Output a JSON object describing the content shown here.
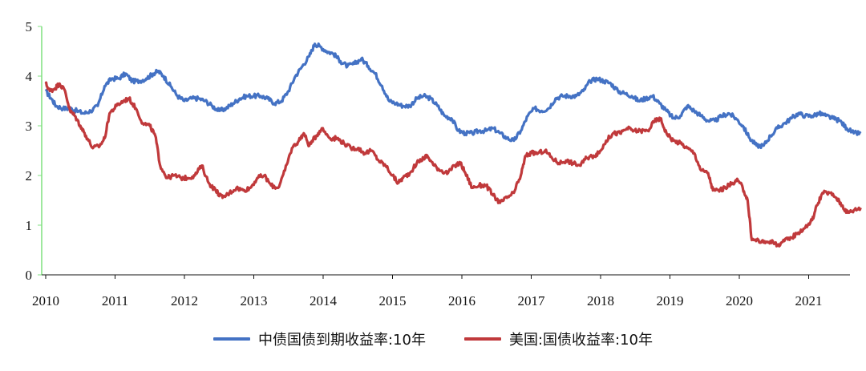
{
  "chart_data": {
    "type": "line",
    "x_ticks": [
      "2010",
      "2011",
      "2012",
      "2013",
      "2014",
      "2015",
      "2016",
      "2017",
      "2018",
      "2019",
      "2020",
      "2021"
    ],
    "y_ticks": [
      "0",
      "1",
      "2",
      "3",
      "4",
      "5"
    ],
    "ylim": [
      0,
      5
    ],
    "xlim": [
      2010.0,
      2021.75
    ],
    "grid": false,
    "legend_position": "bottom",
    "series": [
      {
        "name": "中债国债到期收益率:10年",
        "color": "#4472c4",
        "points": [
          [
            2010.0,
            3.7
          ],
          [
            2010.08,
            3.55
          ],
          [
            2010.15,
            3.4
          ],
          [
            2010.25,
            3.35
          ],
          [
            2010.35,
            3.35
          ],
          [
            2010.45,
            3.3
          ],
          [
            2010.55,
            3.25
          ],
          [
            2010.65,
            3.3
          ],
          [
            2010.75,
            3.4
          ],
          [
            2010.85,
            3.8
          ],
          [
            2010.95,
            3.95
          ],
          [
            2011.05,
            3.95
          ],
          [
            2011.15,
            4.05
          ],
          [
            2011.25,
            3.9
          ],
          [
            2011.35,
            3.9
          ],
          [
            2011.45,
            3.95
          ],
          [
            2011.55,
            4.05
          ],
          [
            2011.62,
            4.1
          ],
          [
            2011.7,
            4.0
          ],
          [
            2011.8,
            3.8
          ],
          [
            2011.9,
            3.6
          ],
          [
            2012.0,
            3.5
          ],
          [
            2012.1,
            3.55
          ],
          [
            2012.2,
            3.55
          ],
          [
            2012.3,
            3.5
          ],
          [
            2012.4,
            3.4
          ],
          [
            2012.5,
            3.3
          ],
          [
            2012.6,
            3.35
          ],
          [
            2012.7,
            3.45
          ],
          [
            2012.8,
            3.55
          ],
          [
            2012.9,
            3.6
          ],
          [
            2013.0,
            3.6
          ],
          [
            2013.1,
            3.6
          ],
          [
            2013.2,
            3.55
          ],
          [
            2013.3,
            3.45
          ],
          [
            2013.4,
            3.5
          ],
          [
            2013.5,
            3.7
          ],
          [
            2013.6,
            4.0
          ],
          [
            2013.7,
            4.2
          ],
          [
            2013.8,
            4.4
          ],
          [
            2013.88,
            4.65
          ],
          [
            2013.95,
            4.6
          ],
          [
            2014.05,
            4.5
          ],
          [
            2014.15,
            4.45
          ],
          [
            2014.25,
            4.3
          ],
          [
            2014.35,
            4.2
          ],
          [
            2014.45,
            4.25
          ],
          [
            2014.55,
            4.35
          ],
          [
            2014.65,
            4.2
          ],
          [
            2014.75,
            4.05
          ],
          [
            2014.85,
            3.8
          ],
          [
            2014.95,
            3.5
          ],
          [
            2015.05,
            3.45
          ],
          [
            2015.15,
            3.4
          ],
          [
            2015.25,
            3.4
          ],
          [
            2015.35,
            3.55
          ],
          [
            2015.45,
            3.6
          ],
          [
            2015.55,
            3.55
          ],
          [
            2015.65,
            3.4
          ],
          [
            2015.75,
            3.2
          ],
          [
            2015.85,
            3.15
          ],
          [
            2015.95,
            2.9
          ],
          [
            2016.05,
            2.85
          ],
          [
            2016.15,
            2.85
          ],
          [
            2016.25,
            2.9
          ],
          [
            2016.35,
            2.9
          ],
          [
            2016.45,
            2.95
          ],
          [
            2016.55,
            2.85
          ],
          [
            2016.65,
            2.75
          ],
          [
            2016.75,
            2.7
          ],
          [
            2016.85,
            2.9
          ],
          [
            2016.95,
            3.2
          ],
          [
            2017.05,
            3.35
          ],
          [
            2017.15,
            3.3
          ],
          [
            2017.25,
            3.35
          ],
          [
            2017.35,
            3.55
          ],
          [
            2017.45,
            3.6
          ],
          [
            2017.55,
            3.6
          ],
          [
            2017.65,
            3.6
          ],
          [
            2017.75,
            3.7
          ],
          [
            2017.85,
            3.9
          ],
          [
            2017.95,
            3.95
          ],
          [
            2018.05,
            3.9
          ],
          [
            2018.15,
            3.85
          ],
          [
            2018.25,
            3.7
          ],
          [
            2018.35,
            3.65
          ],
          [
            2018.45,
            3.6
          ],
          [
            2018.55,
            3.5
          ],
          [
            2018.65,
            3.55
          ],
          [
            2018.75,
            3.6
          ],
          [
            2018.85,
            3.45
          ],
          [
            2018.95,
            3.3
          ],
          [
            2019.05,
            3.15
          ],
          [
            2019.15,
            3.2
          ],
          [
            2019.25,
            3.4
          ],
          [
            2019.35,
            3.3
          ],
          [
            2019.45,
            3.2
          ],
          [
            2019.55,
            3.1
          ],
          [
            2019.65,
            3.1
          ],
          [
            2019.75,
            3.2
          ],
          [
            2019.85,
            3.25
          ],
          [
            2019.95,
            3.15
          ],
          [
            2020.05,
            3.0
          ],
          [
            2020.15,
            2.75
          ],
          [
            2020.25,
            2.6
          ],
          [
            2020.35,
            2.6
          ],
          [
            2020.45,
            2.8
          ],
          [
            2020.55,
            2.95
          ],
          [
            2020.65,
            3.05
          ],
          [
            2020.75,
            3.15
          ],
          [
            2020.85,
            3.25
          ],
          [
            2020.95,
            3.2
          ],
          [
            2021.05,
            3.2
          ],
          [
            2021.15,
            3.25
          ],
          [
            2021.25,
            3.2
          ],
          [
            2021.35,
            3.15
          ],
          [
            2021.45,
            3.1
          ],
          [
            2021.55,
            2.95
          ],
          [
            2021.65,
            2.85
          ],
          [
            2021.75,
            2.85
          ]
        ]
      },
      {
        "name": "美国:国债收益率:10年",
        "color": "#c0393b",
        "points": [
          [
            2010.0,
            3.85
          ],
          [
            2010.06,
            3.7
          ],
          [
            2010.13,
            3.75
          ],
          [
            2010.2,
            3.85
          ],
          [
            2010.28,
            3.7
          ],
          [
            2010.35,
            3.3
          ],
          [
            2010.42,
            3.2
          ],
          [
            2010.5,
            3.0
          ],
          [
            2010.58,
            2.8
          ],
          [
            2010.68,
            2.55
          ],
          [
            2010.78,
            2.6
          ],
          [
            2010.85,
            2.75
          ],
          [
            2010.92,
            3.25
          ],
          [
            2011.02,
            3.4
          ],
          [
            2011.12,
            3.5
          ],
          [
            2011.2,
            3.55
          ],
          [
            2011.3,
            3.35
          ],
          [
            2011.4,
            3.05
          ],
          [
            2011.5,
            3.0
          ],
          [
            2011.58,
            2.8
          ],
          [
            2011.65,
            2.2
          ],
          [
            2011.75,
            1.95
          ],
          [
            2011.85,
            2.0
          ],
          [
            2011.95,
            1.95
          ],
          [
            2012.05,
            1.95
          ],
          [
            2012.15,
            2.0
          ],
          [
            2012.25,
            2.2
          ],
          [
            2012.35,
            1.85
          ],
          [
            2012.45,
            1.7
          ],
          [
            2012.55,
            1.55
          ],
          [
            2012.65,
            1.65
          ],
          [
            2012.75,
            1.75
          ],
          [
            2012.85,
            1.7
          ],
          [
            2012.95,
            1.75
          ],
          [
            2013.05,
            1.95
          ],
          [
            2013.15,
            2.0
          ],
          [
            2013.25,
            1.8
          ],
          [
            2013.35,
            1.75
          ],
          [
            2013.45,
            2.1
          ],
          [
            2013.55,
            2.55
          ],
          [
            2013.65,
            2.7
          ],
          [
            2013.72,
            2.85
          ],
          [
            2013.8,
            2.6
          ],
          [
            2013.9,
            2.8
          ],
          [
            2013.98,
            2.95
          ],
          [
            2014.1,
            2.75
          ],
          [
            2014.2,
            2.75
          ],
          [
            2014.3,
            2.65
          ],
          [
            2014.4,
            2.55
          ],
          [
            2014.5,
            2.55
          ],
          [
            2014.6,
            2.45
          ],
          [
            2014.7,
            2.5
          ],
          [
            2014.8,
            2.3
          ],
          [
            2014.9,
            2.2
          ],
          [
            2015.0,
            2.0
          ],
          [
            2015.08,
            1.85
          ],
          [
            2015.15,
            1.95
          ],
          [
            2015.25,
            2.05
          ],
          [
            2015.35,
            2.25
          ],
          [
            2015.45,
            2.35
          ],
          [
            2015.5,
            2.4
          ],
          [
            2015.6,
            2.2
          ],
          [
            2015.7,
            2.1
          ],
          [
            2015.8,
            2.05
          ],
          [
            2015.9,
            2.2
          ],
          [
            2015.98,
            2.25
          ],
          [
            2016.05,
            2.05
          ],
          [
            2016.15,
            1.75
          ],
          [
            2016.25,
            1.8
          ],
          [
            2016.35,
            1.8
          ],
          [
            2016.45,
            1.6
          ],
          [
            2016.55,
            1.45
          ],
          [
            2016.65,
            1.55
          ],
          [
            2016.75,
            1.65
          ],
          [
            2016.85,
            2.0
          ],
          [
            2016.92,
            2.4
          ],
          [
            2017.0,
            2.45
          ],
          [
            2017.1,
            2.45
          ],
          [
            2017.2,
            2.5
          ],
          [
            2017.3,
            2.35
          ],
          [
            2017.4,
            2.25
          ],
          [
            2017.5,
            2.3
          ],
          [
            2017.6,
            2.25
          ],
          [
            2017.7,
            2.2
          ],
          [
            2017.8,
            2.35
          ],
          [
            2017.9,
            2.4
          ],
          [
            2017.98,
            2.45
          ],
          [
            2018.08,
            2.7
          ],
          [
            2018.18,
            2.85
          ],
          [
            2018.28,
            2.85
          ],
          [
            2018.38,
            2.95
          ],
          [
            2018.48,
            2.9
          ],
          [
            2018.58,
            2.9
          ],
          [
            2018.68,
            2.9
          ],
          [
            2018.78,
            3.1
          ],
          [
            2018.86,
            3.15
          ],
          [
            2018.95,
            2.85
          ],
          [
            2019.05,
            2.7
          ],
          [
            2019.15,
            2.65
          ],
          [
            2019.25,
            2.55
          ],
          [
            2019.35,
            2.45
          ],
          [
            2019.45,
            2.1
          ],
          [
            2019.55,
            2.05
          ],
          [
            2019.62,
            1.7
          ],
          [
            2019.7,
            1.7
          ],
          [
            2019.8,
            1.75
          ],
          [
            2019.9,
            1.85
          ],
          [
            2019.98,
            1.9
          ],
          [
            2020.05,
            1.75
          ],
          [
            2020.12,
            1.5
          ],
          [
            2020.18,
            0.7
          ],
          [
            2020.25,
            0.7
          ],
          [
            2020.35,
            0.65
          ],
          [
            2020.45,
            0.68
          ],
          [
            2020.55,
            0.6
          ],
          [
            2020.65,
            0.68
          ],
          [
            2020.75,
            0.75
          ],
          [
            2020.85,
            0.85
          ],
          [
            2020.95,
            0.95
          ],
          [
            2021.05,
            1.1
          ],
          [
            2021.12,
            1.4
          ],
          [
            2021.2,
            1.65
          ],
          [
            2021.3,
            1.65
          ],
          [
            2021.4,
            1.55
          ],
          [
            2021.48,
            1.4
          ],
          [
            2021.56,
            1.25
          ],
          [
            2021.65,
            1.3
          ],
          [
            2021.75,
            1.35
          ]
        ]
      }
    ]
  }
}
